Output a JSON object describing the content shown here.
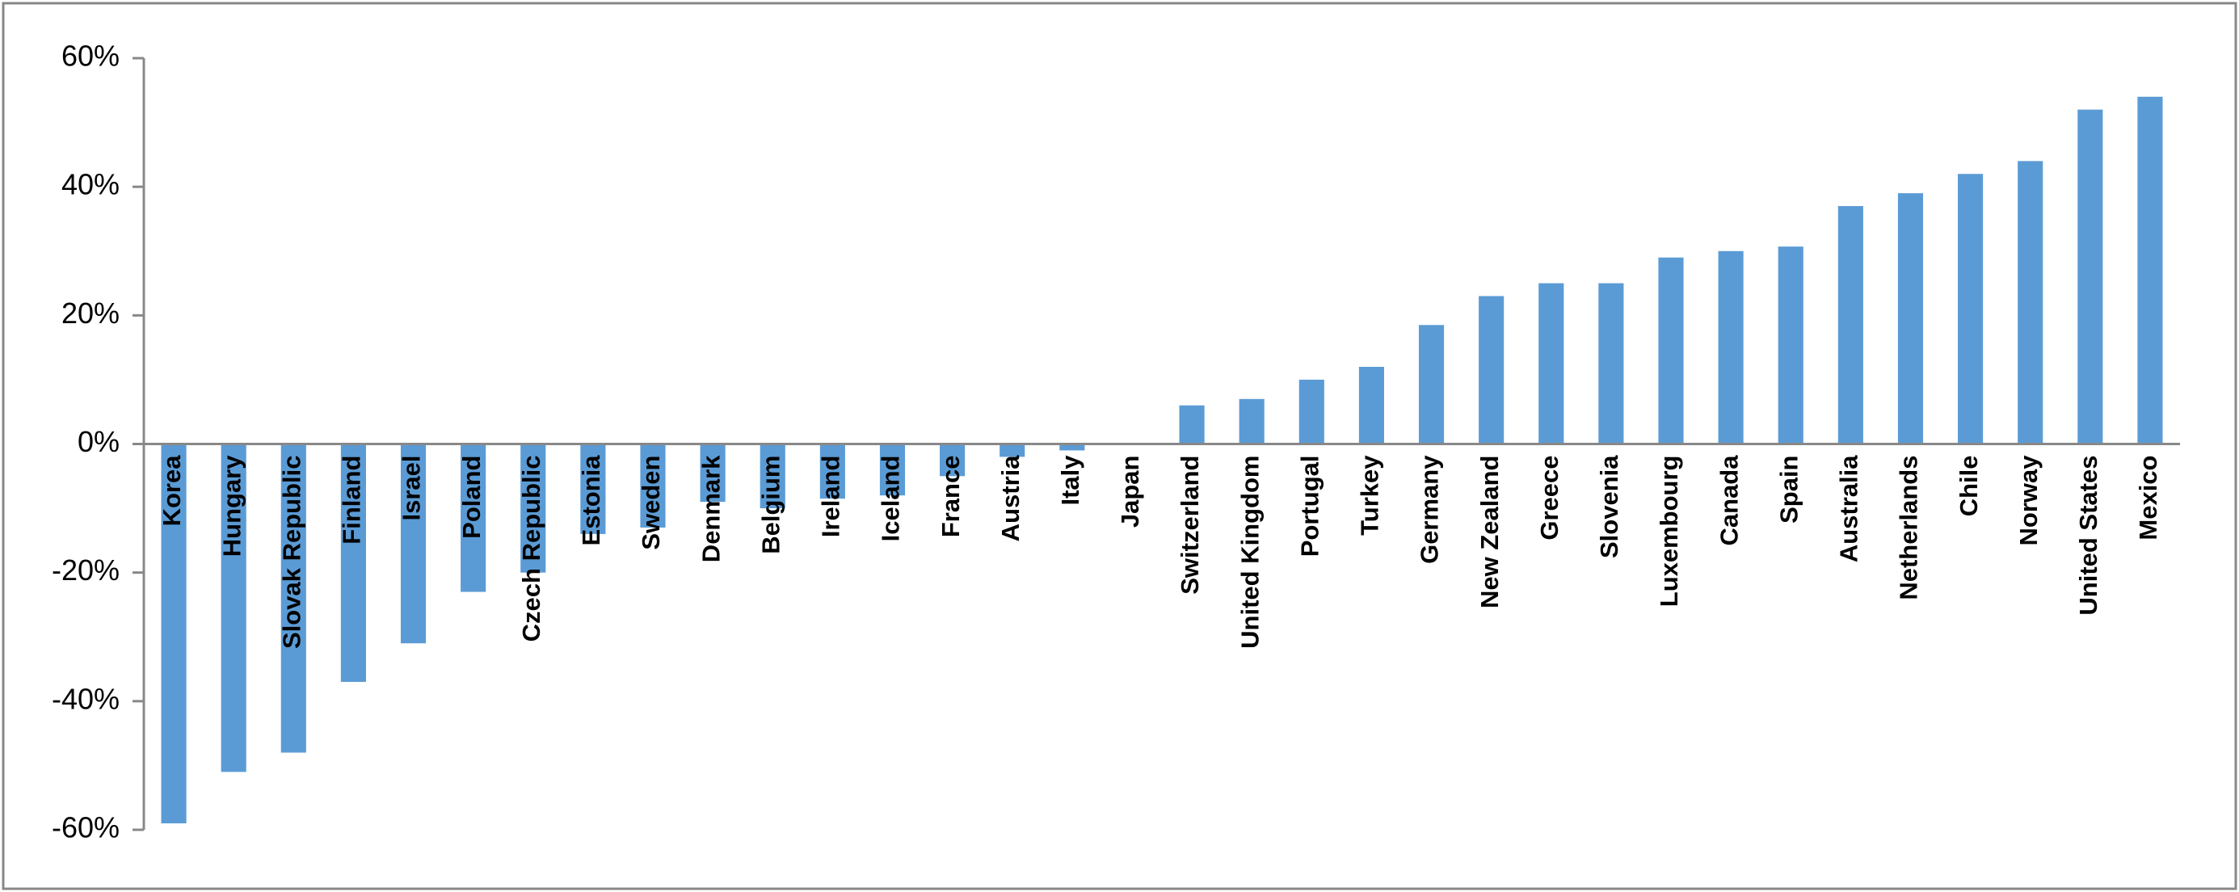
{
  "chart_data": {
    "type": "bar",
    "categories": [
      "Korea",
      "Hungary",
      "Slovak Republic",
      "Finland",
      "Israel",
      "Poland",
      "Czech Republic",
      "Estonia",
      "Sweden",
      "Denmark",
      "Belgium",
      "Ireland",
      "Iceland",
      "France",
      "Austria",
      "Italy",
      "Japan",
      "Switzerland",
      "United Kingdom",
      "Portugal",
      "Turkey",
      "Germany",
      "New Zealand",
      "Greece",
      "Slovenia",
      "Luxembourg",
      "Canada",
      "Spain",
      "Australia",
      "Netherlands",
      "Chile",
      "Norway",
      "United States",
      "Mexico"
    ],
    "values": [
      -59,
      -51,
      -48,
      -37,
      -31,
      -23,
      -20,
      -14,
      -13,
      -9,
      -10,
      -8.5,
      -8,
      -5,
      -2,
      -1,
      0,
      6,
      7,
      10,
      12,
      18.5,
      23,
      25,
      25,
      29,
      30,
      30.7,
      37,
      39,
      42,
      44,
      52,
      54
    ],
    "color": "#5b9bd5",
    "ylim": [
      -60,
      60
    ],
    "yticks": [
      {
        "value": -60,
        "label": "-60%"
      },
      {
        "value": -40,
        "label": "-40%"
      },
      {
        "value": -20,
        "label": "-20%"
      },
      {
        "value": 0,
        "label": "0%"
      },
      {
        "value": 20,
        "label": "20%"
      },
      {
        "value": 40,
        "label": "40%"
      },
      {
        "value": 60,
        "label": "60%"
      }
    ],
    "grid": false
  }
}
